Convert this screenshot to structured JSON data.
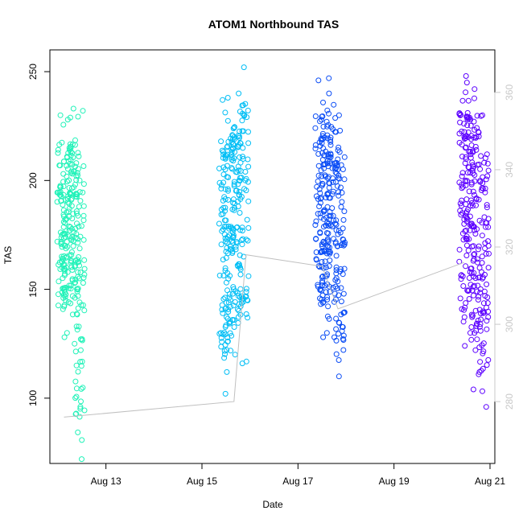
{
  "chart_data": {
    "type": "scatter",
    "title": "ATOM1 Northbound TAS",
    "xlabel": "Date",
    "ylabel": "TAS",
    "x_ticks": [
      {
        "label": "Aug 13",
        "day": 13
      },
      {
        "label": "Aug 15",
        "day": 15
      },
      {
        "label": "Aug 17",
        "day": 17
      },
      {
        "label": "Aug 19",
        "day": 19
      },
      {
        "label": "Aug 21",
        "day": 21
      }
    ],
    "xlim": [
      "Aug 12",
      "Aug 21"
    ],
    "ylim": [
      70,
      260
    ],
    "y_ticks": [
      100,
      150,
      200,
      250
    ],
    "y2_ticks": [
      280,
      300,
      320,
      340,
      360
    ],
    "y2lim": [
      264,
      371
    ],
    "y2_color": "#c8c8c8",
    "grid": false,
    "series": [
      {
        "color": "#1ff2b8",
        "x_range": [
          "Aug 12 02:00",
          "Aug 12 11:00"
        ],
        "tas_bands": [
          {
            "x": "Aug 12 02:00",
            "y_min": 128,
            "y_max": 230
          },
          {
            "x": "Aug 12 05:00",
            "y_min": 130,
            "y_max": 228
          },
          {
            "x": "Aug 12 08:00",
            "y_min": 125,
            "y_max": 233
          },
          {
            "x": "Aug 12 11:00",
            "y_min": 72,
            "y_max": 232
          }
        ]
      },
      {
        "color": "#00bef5",
        "x_range": [
          "Aug 15 11:00",
          "Aug 15 21:00"
        ],
        "tas_bands": [
          {
            "x": "Aug 15 11:00",
            "y_min": 102,
            "y_max": 237
          },
          {
            "x": "Aug 15 14:00",
            "y_min": 112,
            "y_max": 238
          },
          {
            "x": "Aug 15 17:00",
            "y_min": 120,
            "y_max": 240
          },
          {
            "x": "Aug 15 21:00",
            "y_min": 116,
            "y_max": 252
          }
        ]
      },
      {
        "color": "#0a4cf5",
        "x_range": [
          "Aug 17 11:00",
          "Aug 17 21:00"
        ],
        "tas_bands": [
          {
            "x": "Aug 17 11:00",
            "y_min": 128,
            "y_max": 246
          },
          {
            "x": "Aug 17 14:00",
            "y_min": 130,
            "y_max": 247
          },
          {
            "x": "Aug 17 17:00",
            "y_min": 128,
            "y_max": 240
          },
          {
            "x": "Aug 17 21:00",
            "y_min": 110,
            "y_max": 230
          }
        ]
      },
      {
        "color": "#5c00ff",
        "x_range": [
          "Aug 20 11:00",
          "Aug 20 21:00"
        ],
        "tas_bands": [
          {
            "x": "Aug 20 11:00",
            "y_min": 124,
            "y_max": 248
          },
          {
            "x": "Aug 20 14:00",
            "y_min": 130,
            "y_max": 245
          },
          {
            "x": "Aug 20 17:00",
            "y_min": 104,
            "y_max": 242
          },
          {
            "x": "Aug 20 21:00",
            "y_min": 96,
            "y_max": 230
          }
        ]
      }
    ],
    "secondary_line": {
      "color": "#c0c0c0",
      "points": [
        {
          "x": "Aug 12 03:00",
          "y": 276
        },
        {
          "x": "Aug 15 16:00",
          "y": 280
        },
        {
          "x": "Aug 15 22:00",
          "y": 318
        },
        {
          "x": "Aug 17 12:00",
          "y": 315
        },
        {
          "x": "Aug 17 20:00",
          "y": 304
        },
        {
          "x": "Aug 20 11:00",
          "y": 316
        }
      ]
    }
  }
}
